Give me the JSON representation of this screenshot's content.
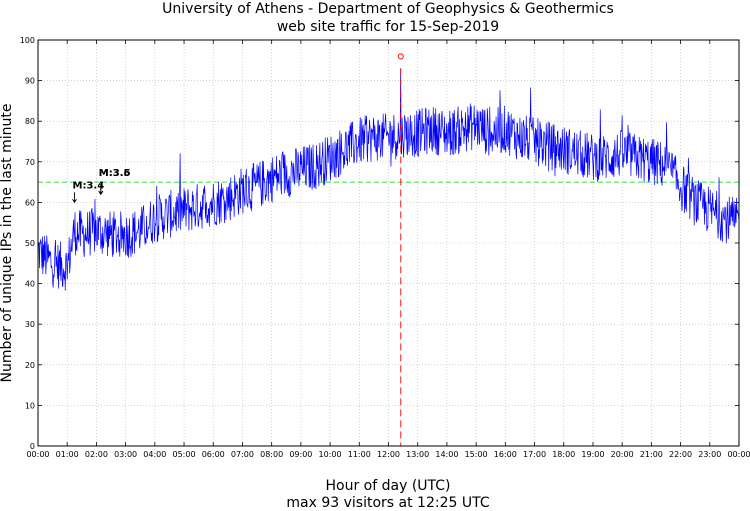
{
  "chart_data": {
    "type": "line",
    "title": "University of Athens - Department of Geophysics & Geothermics",
    "subtitle": "web site traffic for 15-Sep-2019",
    "xlabel": "Hour of day (UTC)",
    "ylabel": "Number of unique IPs in the last minute",
    "footer": "max 93 visitors at 12:25 UTC",
    "ylim": [
      0,
      100
    ],
    "yticks": [
      "0",
      "10",
      "20",
      "30",
      "40",
      "50",
      "60",
      "70",
      "80",
      "90",
      "100"
    ],
    "xlim_minutes": [
      0,
      1440
    ],
    "xticks": [
      "00:00",
      "01:00",
      "02:00",
      "03:00",
      "04:00",
      "05:00",
      "06:00",
      "07:00",
      "08:00",
      "09:00",
      "10:00",
      "11:00",
      "12:00",
      "13:00",
      "14:00",
      "15:00",
      "16:00",
      "17:00",
      "18:00",
      "19:00",
      "20:00",
      "21:00",
      "22:00",
      "23:00",
      "00:00"
    ],
    "grid": true,
    "series": [
      {
        "name": "",
        "color": "#0000ff",
        "x_hours": [
          0,
          0.5,
          1,
          1.25,
          1.5,
          2,
          2.5,
          3,
          3.5,
          4,
          4.5,
          5,
          5.5,
          6,
          6.5,
          7,
          7.5,
          8,
          8.5,
          9,
          9.5,
          10,
          10.5,
          11,
          11.5,
          12,
          12.42,
          12.5,
          13,
          13.5,
          14,
          14.5,
          15,
          15.5,
          16,
          16.5,
          17,
          17.5,
          18,
          18.5,
          19,
          19.5,
          20,
          20.5,
          21,
          21.5,
          22,
          22.5,
          23,
          23.5,
          24
        ],
        "y": [
          48,
          45,
          44,
          53,
          52,
          53,
          52,
          52,
          53,
          56,
          57,
          58,
          59,
          60,
          61,
          63,
          64,
          66,
          67,
          68,
          69,
          71,
          73,
          75,
          76,
          76,
          93,
          77,
          77,
          78,
          77,
          78,
          79,
          77,
          78,
          76,
          75,
          74,
          73,
          72,
          71,
          71,
          72,
          71,
          70,
          69,
          64,
          60,
          58,
          56,
          55
        ],
        "noise_amplitude": 6
      }
    ],
    "reference_line": {
      "y": 65,
      "color": "#00cc00",
      "style": "dashed"
    },
    "max_marker": {
      "x_hours": 12.42,
      "y": 93,
      "color": "#ff0000"
    },
    "annotations": [
      {
        "label": "M:3.4",
        "x_hours": 1.25,
        "y": 62
      },
      {
        "label": "M:3.5",
        "x_hours": 2.15,
        "y": 64
      },
      {
        "label": "M:3.6",
        "x_hours": 2.15,
        "y": 64
      }
    ]
  }
}
